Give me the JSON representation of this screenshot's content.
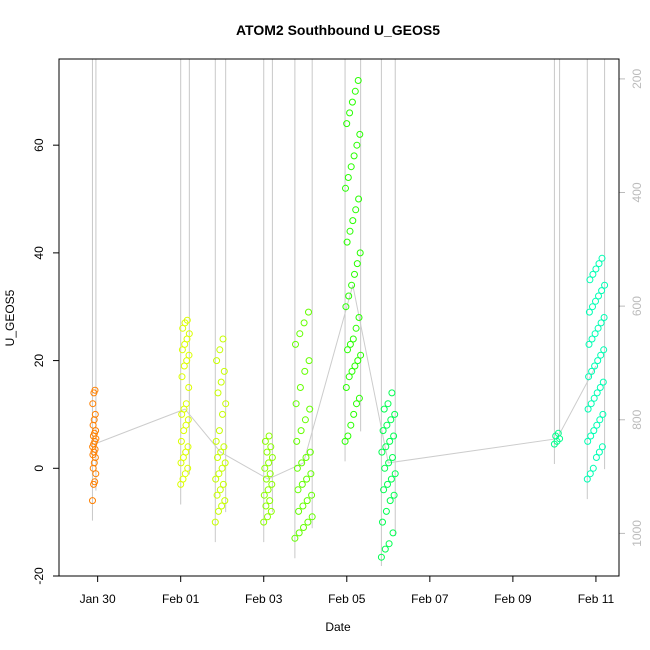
{
  "chart_data": {
    "type": "scatter",
    "title": "ATOM2 Southbound U_GEOS5",
    "xlabel": "Date",
    "ylabel": "U_GEOS5",
    "x_axis_type": "date",
    "xlim": [
      "2017-01-29 01:40",
      "2017-02-11 13:20"
    ],
    "ylim": [
      -20,
      76
    ],
    "y_ticks": [
      -20,
      0,
      20,
      40,
      60
    ],
    "x_ticks": [
      {
        "value": "2017-01-30",
        "label": "Jan 30"
      },
      {
        "value": "2017-02-01",
        "label": "Feb 01"
      },
      {
        "value": "2017-02-03",
        "label": "Feb 03"
      },
      {
        "value": "2017-02-05",
        "label": "Feb 05"
      },
      {
        "value": "2017-02-07",
        "label": "Feb 07"
      },
      {
        "value": "2017-02-09",
        "label": "Feb 09"
      },
      {
        "value": "2017-02-11",
        "label": "Feb 11"
      }
    ],
    "secondary_axis": {
      "side": "right",
      "reversed": true,
      "ylim": [
        1075,
        165
      ],
      "ticks": [
        200,
        400,
        600,
        800,
        1000
      ],
      "color": "#bbbbbb"
    },
    "point_style": "open-circle",
    "grid": false,
    "legend": "none",
    "series": [
      {
        "date": "2017-01-29 22:00",
        "x_range": [
          "2017-01-29 21:00",
          "2017-01-29 23:00"
        ],
        "values": [
          -6,
          -3,
          -2.5,
          -1,
          0,
          1,
          2,
          2.5,
          3,
          3.5,
          4,
          4.5,
          5,
          5.5,
          6,
          6.5,
          7,
          8,
          9,
          10,
          12,
          14,
          14.5
        ],
        "color": "#ff8000"
      },
      {
        "date": "2017-02-01 02:00",
        "x_range": [
          "2017-02-01 00:00",
          "2017-02-01 05:00"
        ],
        "values": [
          -3,
          -2,
          -1,
          0,
          1,
          2,
          3,
          4,
          5,
          7,
          8,
          9,
          10,
          11,
          12,
          15,
          17,
          19,
          20,
          21,
          22,
          23,
          24,
          25,
          26,
          27,
          27.5
        ],
        "color": "#dcff00"
      },
      {
        "date": "2017-02-01 23:00",
        "x_range": [
          "2017-02-01 20:00",
          "2017-02-02 02:00"
        ],
        "values": [
          -10,
          -8,
          -7,
          -6,
          -5,
          -4,
          -3,
          -2,
          -1,
          0,
          1,
          2,
          3,
          4,
          5,
          7,
          10,
          12,
          14,
          16,
          18,
          20,
          22,
          24
        ],
        "color": "#c8ff00"
      },
      {
        "date": "2017-02-03 03:00",
        "x_range": [
          "2017-02-03 00:00",
          "2017-02-03 05:00"
        ],
        "values": [
          -10,
          -9,
          -8,
          -7,
          -6,
          -5,
          -4,
          -3,
          -2,
          -1,
          0,
          1,
          2,
          3,
          4,
          5,
          6
        ],
        "color": "#8cff00"
      },
      {
        "date": "2017-02-03 23:00",
        "x_range": [
          "2017-02-03 18:00",
          "2017-02-04 04:00"
        ],
        "values": [
          -13,
          -12,
          -11,
          -10,
          -9,
          -8,
          -7,
          -6,
          -5,
          -4,
          -3,
          -2,
          -1,
          0,
          1,
          2,
          3,
          5,
          7,
          9,
          11,
          12,
          15,
          18,
          20,
          23,
          25,
          27,
          29
        ],
        "color": "#64ff00"
      },
      {
        "date": "2017-02-05 03:00",
        "x_range": [
          "2017-02-04 23:00",
          "2017-02-05 08:00"
        ],
        "values": [
          5,
          6,
          8,
          10,
          12,
          13,
          15,
          17,
          18,
          19,
          20,
          21,
          22,
          23,
          24,
          26,
          28,
          30,
          32,
          34,
          36,
          38,
          40,
          42,
          44,
          46,
          48,
          50,
          52,
          54,
          56,
          58,
          60,
          62,
          64,
          66,
          68,
          70,
          72
        ],
        "color": "#28ff00"
      },
      {
        "date": "2017-02-06 00:00",
        "x_range": [
          "2017-02-05 20:00",
          "2017-02-06 04:00"
        ],
        "values": [
          -16.5,
          -15,
          -14,
          -12,
          -10,
          -8,
          -6,
          -5,
          -4,
          -3,
          -2,
          -1,
          0,
          1,
          2,
          3,
          4,
          5,
          6,
          7,
          8,
          9,
          10,
          11,
          12,
          14
        ],
        "color": "#00ff50"
      },
      {
        "date": "2017-02-10 01:00",
        "x_range": [
          "2017-02-10 00:00",
          "2017-02-10 03:00"
        ],
        "values": [
          4.5,
          5,
          5.5,
          6,
          6.5
        ],
        "color": "#00ff8c"
      },
      {
        "date": "2017-02-11 00:00",
        "x_range": [
          "2017-02-10 19:00",
          "2017-02-11 05:00"
        ],
        "values": [
          -2,
          -1,
          0,
          2,
          3,
          4,
          5,
          6,
          7,
          8,
          9,
          10,
          11,
          12,
          13,
          14,
          15,
          16,
          17,
          18,
          19,
          20,
          21,
          22,
          23,
          24,
          25,
          26,
          27,
          28,
          29,
          30,
          31,
          32,
          33,
          34,
          35,
          36,
          37,
          38,
          39
        ],
        "color": "#00ffb4"
      }
    ]
  }
}
